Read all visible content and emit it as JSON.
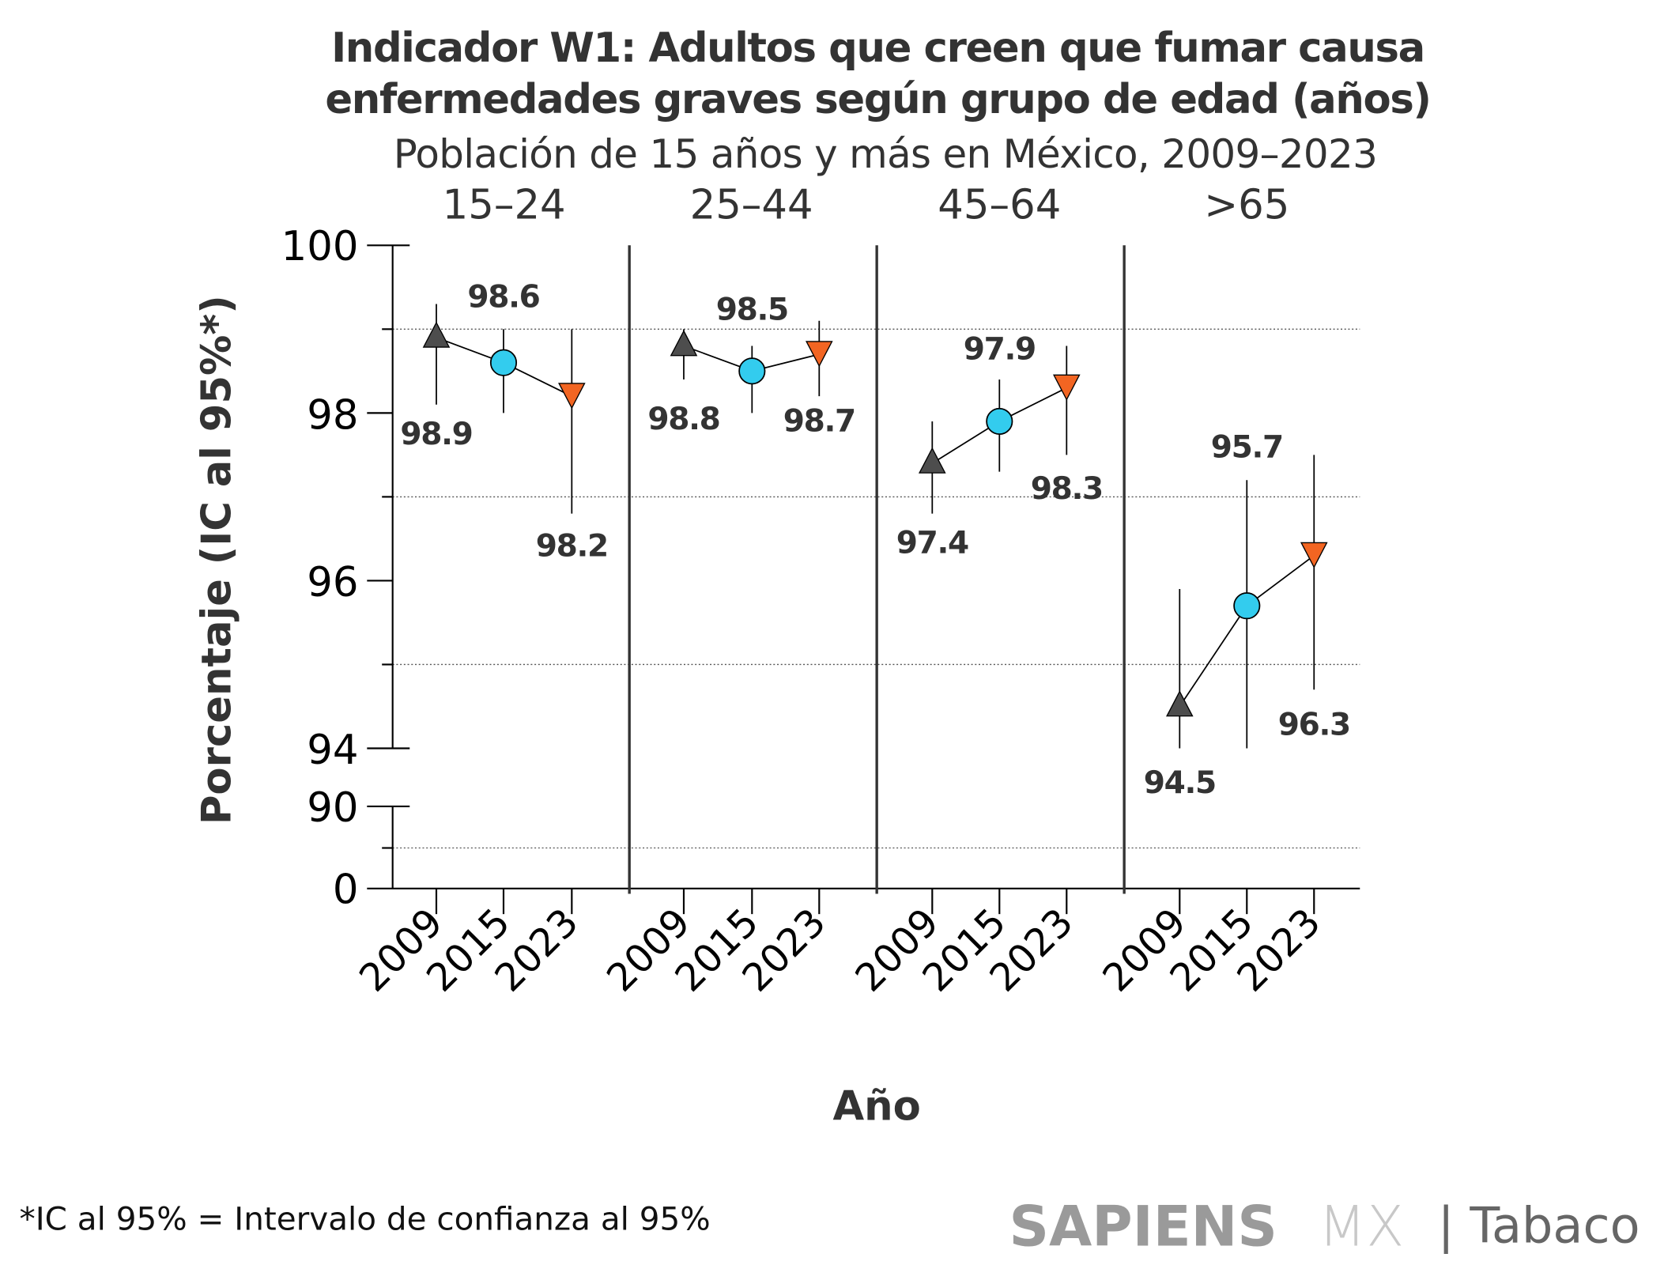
{
  "chart_data": {
    "type": "scatter",
    "title": "Indicador W1: Adultos que creen que fumar causa enfermedades graves según grupo de edad (años)",
    "title_lines": [
      "Indicador W1: Adultos que creen que fumar causa",
      "enfermedades graves según grupo de edad (años)"
    ],
    "subtitle": "Población de 15 años y más en México, 2009–2023",
    "xlabel": "Año",
    "ylabel": "Porcentaje (IC al 95%*)",
    "y_ticks": [
      "100",
      "98",
      "96",
      "94",
      "90",
      "0"
    ],
    "ylim_upper_segment": [
      94,
      100
    ],
    "ylim_lower_segment": [
      0,
      90
    ],
    "axis_break": true,
    "grid": "dotted horizontal",
    "panels": [
      {
        "group": "15–24",
        "years": [
          "2009",
          "2015",
          "2023"
        ],
        "values": [
          98.9,
          98.6,
          98.2
        ],
        "ci_low": [
          98.1,
          98.0,
          96.8
        ],
        "ci_high": [
          99.3,
          99.0,
          99.0
        ],
        "labels": [
          "98.9",
          "98.6",
          "98.2"
        ]
      },
      {
        "group": "25–44",
        "years": [
          "2009",
          "2015",
          "2023"
        ],
        "values": [
          98.8,
          98.5,
          98.7
        ],
        "ci_low": [
          98.4,
          98.0,
          98.2
        ],
        "ci_high": [
          99.0,
          98.8,
          99.1
        ],
        "labels": [
          "98.8",
          "98.5",
          "98.7"
        ]
      },
      {
        "group": "45–64",
        "years": [
          "2009",
          "2015",
          "2023"
        ],
        "values": [
          97.4,
          97.9,
          98.3
        ],
        "ci_low": [
          96.8,
          97.3,
          97.5
        ],
        "ci_high": [
          97.9,
          98.4,
          98.8
        ],
        "labels": [
          "97.4",
          "97.9",
          "98.3"
        ]
      },
      {
        "group": ">65",
        "years": [
          "2009",
          "2015",
          "2023"
        ],
        "values": [
          94.5,
          95.7,
          96.3
        ],
        "ci_low": [
          94.0,
          94.0,
          94.7
        ],
        "ci_high": [
          95.9,
          97.2,
          97.5
        ],
        "labels": [
          "94.5",
          "95.7",
          "96.3"
        ]
      }
    ],
    "markers": {
      "2009": "triangle-up",
      "2015": "circle",
      "2023": "triangle-down"
    },
    "colors": {
      "2009": "#4d4d4d",
      "2015": "#33ccee",
      "2023": "#f26522"
    }
  },
  "footnote": "*IC al 95% = Intervalo de confianza al 95%",
  "logo": {
    "brand": "SAPIENS",
    "suffix": "MX",
    "section": "| Tabaco"
  }
}
